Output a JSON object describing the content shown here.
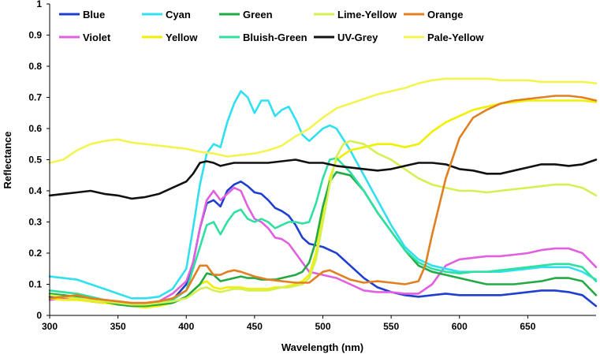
{
  "chart_data": {
    "type": "line",
    "xlabel": "Wavelength (nm)",
    "ylabel": "Reflectance",
    "xlim": [
      300,
      700
    ],
    "ylim": [
      0,
      1
    ],
    "xticks": [
      300,
      350,
      400,
      450,
      500,
      550,
      600,
      650
    ],
    "yticks": [
      0,
      0.1,
      0.2,
      0.3,
      0.4,
      0.5,
      0.6,
      0.7,
      0.8,
      0.9,
      1
    ],
    "ytick_labels": [
      "0",
      "0.1",
      "0.2",
      "0.3",
      "0.4",
      "0.5",
      "0.6",
      "0.7",
      "0.8",
      "0.9",
      "1"
    ],
    "legend_position": "top",
    "grid": false,
    "series": [
      {
        "name": "Blue",
        "color": "#1f3fd0",
        "x": [
          300,
          310,
          320,
          330,
          340,
          350,
          360,
          370,
          380,
          390,
          400,
          405,
          410,
          415,
          420,
          425,
          430,
          435,
          440,
          445,
          450,
          455,
          460,
          465,
          470,
          475,
          480,
          485,
          490,
          495,
          500,
          505,
          510,
          520,
          530,
          540,
          550,
          560,
          570,
          580,
          590,
          600,
          610,
          620,
          630,
          640,
          650,
          660,
          670,
          680,
          690,
          700
        ],
        "y": [
          0.06,
          0.06,
          0.06,
          0.045,
          0.04,
          0.04,
          0.035,
          0.035,
          0.04,
          0.05,
          0.1,
          0.17,
          0.28,
          0.36,
          0.37,
          0.35,
          0.4,
          0.42,
          0.43,
          0.415,
          0.395,
          0.39,
          0.37,
          0.345,
          0.335,
          0.32,
          0.29,
          0.25,
          0.23,
          0.225,
          0.22,
          0.21,
          0.2,
          0.16,
          0.12,
          0.09,
          0.075,
          0.065,
          0.06,
          0.065,
          0.07,
          0.065,
          0.065,
          0.065,
          0.065,
          0.07,
          0.075,
          0.08,
          0.08,
          0.075,
          0.065,
          0.03
        ]
      },
      {
        "name": "Violet",
        "color": "#e060e0",
        "x": [
          300,
          310,
          320,
          330,
          340,
          350,
          360,
          370,
          380,
          390,
          400,
          405,
          410,
          415,
          420,
          425,
          430,
          435,
          440,
          445,
          450,
          455,
          460,
          465,
          470,
          475,
          480,
          485,
          490,
          500,
          510,
          520,
          530,
          540,
          550,
          560,
          570,
          580,
          590,
          600,
          610,
          620,
          630,
          640,
          650,
          660,
          670,
          680,
          690,
          700
        ],
        "y": [
          0.05,
          0.055,
          0.06,
          0.055,
          0.05,
          0.045,
          0.04,
          0.04,
          0.045,
          0.07,
          0.11,
          0.17,
          0.28,
          0.37,
          0.4,
          0.37,
          0.39,
          0.41,
          0.4,
          0.35,
          0.31,
          0.3,
          0.28,
          0.25,
          0.245,
          0.23,
          0.2,
          0.17,
          0.14,
          0.13,
          0.12,
          0.1,
          0.08,
          0.075,
          0.075,
          0.07,
          0.07,
          0.1,
          0.16,
          0.18,
          0.185,
          0.19,
          0.19,
          0.195,
          0.2,
          0.21,
          0.215,
          0.215,
          0.2,
          0.155
        ]
      },
      {
        "name": "Cyan",
        "color": "#30e0f0",
        "x": [
          300,
          310,
          320,
          330,
          340,
          350,
          360,
          370,
          380,
          390,
          400,
          405,
          410,
          415,
          420,
          425,
          430,
          435,
          440,
          445,
          450,
          455,
          460,
          465,
          470,
          475,
          480,
          485,
          490,
          495,
          500,
          505,
          510,
          520,
          530,
          540,
          550,
          560,
          570,
          580,
          590,
          600,
          610,
          620,
          630,
          640,
          650,
          660,
          670,
          680,
          690,
          700
        ],
        "y": [
          0.125,
          0.12,
          0.115,
          0.1,
          0.085,
          0.07,
          0.055,
          0.055,
          0.06,
          0.085,
          0.15,
          0.28,
          0.42,
          0.52,
          0.55,
          0.54,
          0.62,
          0.68,
          0.72,
          0.7,
          0.65,
          0.69,
          0.69,
          0.64,
          0.66,
          0.67,
          0.63,
          0.58,
          0.56,
          0.58,
          0.6,
          0.61,
          0.6,
          0.53,
          0.45,
          0.37,
          0.29,
          0.22,
          0.18,
          0.16,
          0.15,
          0.14,
          0.14,
          0.14,
          0.14,
          0.145,
          0.15,
          0.155,
          0.155,
          0.155,
          0.14,
          0.115
        ]
      },
      {
        "name": "Yellow",
        "color": "#f0f000",
        "x": [
          300,
          310,
          320,
          330,
          340,
          350,
          360,
          370,
          380,
          390,
          400,
          405,
          410,
          415,
          420,
          425,
          430,
          435,
          440,
          445,
          450,
          455,
          460,
          465,
          470,
          475,
          480,
          485,
          490,
          495,
          500,
          505,
          510,
          520,
          530,
          540,
          550,
          560,
          570,
          580,
          590,
          600,
          610,
          620,
          630,
          640,
          650,
          660,
          670,
          680,
          690,
          700
        ],
        "y": [
          0.055,
          0.05,
          0.05,
          0.045,
          0.04,
          0.035,
          0.03,
          0.025,
          0.03,
          0.04,
          0.06,
          0.08,
          0.1,
          0.11,
          0.09,
          0.085,
          0.09,
          0.09,
          0.09,
          0.085,
          0.085,
          0.085,
          0.085,
          0.09,
          0.09,
          0.095,
          0.1,
          0.11,
          0.13,
          0.2,
          0.32,
          0.44,
          0.5,
          0.53,
          0.54,
          0.55,
          0.55,
          0.54,
          0.55,
          0.59,
          0.62,
          0.64,
          0.66,
          0.67,
          0.68,
          0.685,
          0.69,
          0.69,
          0.69,
          0.69,
          0.69,
          0.685
        ]
      },
      {
        "name": "Green",
        "color": "#22aa44",
        "x": [
          300,
          310,
          320,
          330,
          340,
          350,
          360,
          370,
          380,
          390,
          400,
          405,
          410,
          415,
          420,
          425,
          430,
          435,
          440,
          445,
          450,
          455,
          460,
          465,
          470,
          475,
          480,
          485,
          490,
          495,
          500,
          505,
          510,
          520,
          530,
          540,
          550,
          560,
          570,
          580,
          590,
          600,
          610,
          620,
          630,
          640,
          650,
          660,
          670,
          680,
          690,
          700
        ],
        "y": [
          0.07,
          0.065,
          0.06,
          0.055,
          0.045,
          0.035,
          0.03,
          0.03,
          0.035,
          0.04,
          0.06,
          0.08,
          0.1,
          0.135,
          0.13,
          0.11,
          0.115,
          0.12,
          0.125,
          0.12,
          0.12,
          0.115,
          0.115,
          0.115,
          0.12,
          0.125,
          0.13,
          0.14,
          0.17,
          0.24,
          0.35,
          0.43,
          0.46,
          0.45,
          0.4,
          0.33,
          0.27,
          0.21,
          0.16,
          0.14,
          0.13,
          0.12,
          0.11,
          0.1,
          0.1,
          0.1,
          0.105,
          0.11,
          0.12,
          0.12,
          0.11,
          0.065
        ]
      },
      {
        "name": "Bluish-Green",
        "color": "#30e0a0",
        "x": [
          300,
          310,
          320,
          330,
          340,
          350,
          360,
          370,
          380,
          390,
          400,
          405,
          410,
          415,
          420,
          425,
          430,
          435,
          440,
          445,
          450,
          455,
          460,
          465,
          470,
          475,
          480,
          485,
          490,
          495,
          500,
          505,
          510,
          520,
          530,
          540,
          550,
          560,
          570,
          580,
          590,
          600,
          610,
          620,
          630,
          640,
          650,
          660,
          670,
          680,
          690,
          700
        ],
        "y": [
          0.08,
          0.075,
          0.07,
          0.06,
          0.05,
          0.04,
          0.035,
          0.035,
          0.04,
          0.05,
          0.08,
          0.15,
          0.22,
          0.29,
          0.3,
          0.26,
          0.3,
          0.33,
          0.34,
          0.31,
          0.3,
          0.31,
          0.3,
          0.28,
          0.29,
          0.3,
          0.3,
          0.295,
          0.3,
          0.36,
          0.44,
          0.5,
          0.505,
          0.46,
          0.4,
          0.33,
          0.27,
          0.21,
          0.17,
          0.15,
          0.14,
          0.135,
          0.14,
          0.14,
          0.145,
          0.15,
          0.155,
          0.16,
          0.165,
          0.165,
          0.155,
          0.11
        ]
      },
      {
        "name": "Lime-Yellow",
        "color": "#d6ef52",
        "x": [
          300,
          310,
          320,
          330,
          340,
          350,
          360,
          370,
          380,
          390,
          400,
          405,
          410,
          415,
          420,
          425,
          430,
          435,
          440,
          445,
          450,
          455,
          460,
          465,
          470,
          475,
          480,
          485,
          490,
          495,
          500,
          505,
          510,
          515,
          520,
          530,
          540,
          550,
          560,
          570,
          580,
          590,
          600,
          610,
          620,
          630,
          640,
          650,
          660,
          670,
          680,
          690,
          700
        ],
        "y": [
          0.065,
          0.06,
          0.055,
          0.05,
          0.045,
          0.04,
          0.035,
          0.035,
          0.04,
          0.045,
          0.055,
          0.07,
          0.085,
          0.09,
          0.08,
          0.075,
          0.08,
          0.085,
          0.085,
          0.08,
          0.08,
          0.08,
          0.08,
          0.085,
          0.09,
          0.09,
          0.095,
          0.1,
          0.12,
          0.18,
          0.3,
          0.42,
          0.51,
          0.55,
          0.56,
          0.55,
          0.52,
          0.5,
          0.47,
          0.44,
          0.42,
          0.41,
          0.4,
          0.4,
          0.395,
          0.4,
          0.405,
          0.41,
          0.415,
          0.42,
          0.42,
          0.41,
          0.385
        ]
      },
      {
        "name": "UV-Grey",
        "color": "#111111",
        "x": [
          300,
          310,
          320,
          330,
          340,
          350,
          360,
          370,
          380,
          390,
          400,
          405,
          410,
          415,
          420,
          425,
          430,
          435,
          440,
          450,
          460,
          470,
          480,
          490,
          500,
          510,
          520,
          530,
          540,
          550,
          560,
          570,
          580,
          590,
          600,
          610,
          620,
          630,
          640,
          650,
          660,
          670,
          680,
          690,
          700
        ],
        "y": [
          0.385,
          0.39,
          0.395,
          0.4,
          0.39,
          0.385,
          0.375,
          0.38,
          0.39,
          0.41,
          0.43,
          0.455,
          0.49,
          0.495,
          0.49,
          0.48,
          0.485,
          0.49,
          0.49,
          0.49,
          0.49,
          0.495,
          0.5,
          0.49,
          0.49,
          0.48,
          0.475,
          0.47,
          0.465,
          0.47,
          0.48,
          0.49,
          0.49,
          0.485,
          0.47,
          0.465,
          0.455,
          0.455,
          0.465,
          0.475,
          0.485,
          0.485,
          0.48,
          0.485,
          0.5
        ]
      },
      {
        "name": "Orange",
        "color": "#e08020",
        "x": [
          300,
          310,
          320,
          330,
          340,
          350,
          360,
          370,
          380,
          390,
          400,
          405,
          410,
          415,
          420,
          425,
          430,
          435,
          440,
          450,
          460,
          470,
          480,
          490,
          500,
          505,
          510,
          520,
          530,
          540,
          550,
          560,
          570,
          575,
          580,
          590,
          600,
          610,
          620,
          630,
          640,
          650,
          660,
          670,
          680,
          690,
          700
        ],
        "y": [
          0.055,
          0.06,
          0.065,
          0.055,
          0.05,
          0.045,
          0.04,
          0.04,
          0.045,
          0.055,
          0.08,
          0.12,
          0.16,
          0.16,
          0.13,
          0.13,
          0.14,
          0.145,
          0.14,
          0.125,
          0.115,
          0.11,
          0.105,
          0.105,
          0.14,
          0.145,
          0.135,
          0.115,
          0.105,
          0.11,
          0.105,
          0.1,
          0.11,
          0.16,
          0.26,
          0.44,
          0.57,
          0.635,
          0.66,
          0.68,
          0.69,
          0.695,
          0.7,
          0.705,
          0.705,
          0.7,
          0.69
        ]
      },
      {
        "name": "Pale-Yellow",
        "color": "#f4f450",
        "x": [
          300,
          310,
          320,
          330,
          340,
          350,
          360,
          370,
          380,
          390,
          400,
          410,
          420,
          430,
          440,
          450,
          460,
          470,
          480,
          490,
          500,
          510,
          520,
          530,
          540,
          550,
          560,
          570,
          580,
          590,
          600,
          610,
          620,
          630,
          640,
          650,
          660,
          670,
          680,
          690,
          700
        ],
        "y": [
          0.49,
          0.5,
          0.53,
          0.55,
          0.56,
          0.565,
          0.555,
          0.55,
          0.545,
          0.54,
          0.535,
          0.525,
          0.52,
          0.51,
          0.515,
          0.52,
          0.53,
          0.545,
          0.575,
          0.6,
          0.635,
          0.665,
          0.68,
          0.695,
          0.71,
          0.72,
          0.73,
          0.745,
          0.755,
          0.76,
          0.76,
          0.76,
          0.76,
          0.755,
          0.755,
          0.755,
          0.75,
          0.75,
          0.75,
          0.75,
          0.745
        ]
      }
    ]
  }
}
